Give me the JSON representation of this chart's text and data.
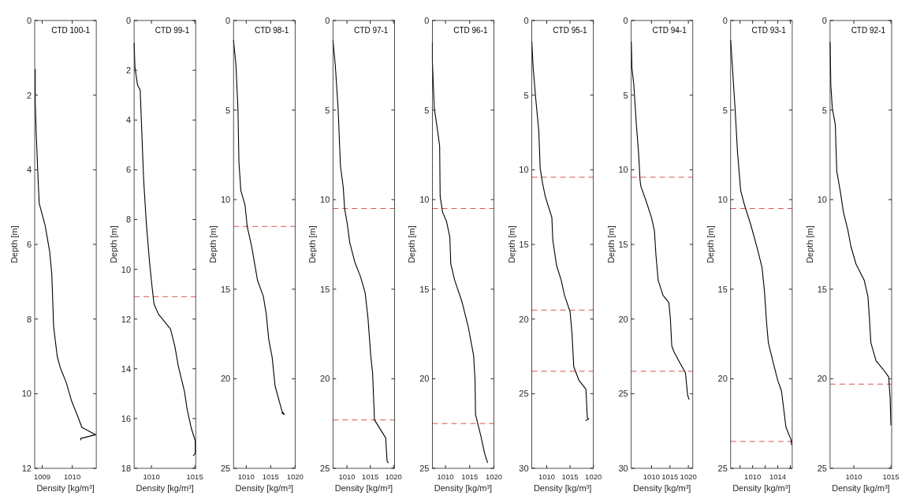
{
  "chart_data": [
    {
      "type": "line",
      "title": "CTD 100-1",
      "xlabel": "Density [kg/m³]",
      "ylabel": "Depth [m]",
      "xlim": [
        1008.75,
        1010.8
      ],
      "xticks": [
        1009,
        1010
      ],
      "ylim": [
        12,
        0
      ],
      "yticks": [
        0,
        2,
        4,
        6,
        8,
        10,
        12
      ],
      "line_style": "solid",
      "series": [
        {
          "color": "#000000",
          "x": [
            1008.77,
            1008.77,
            1008.8,
            1008.85,
            1008.9,
            1009.1,
            1009.25,
            1009.32,
            1009.38,
            1009.5,
            1009.6,
            1009.8,
            1009.98,
            1010.18,
            1010.32,
            1010.78,
            1010.28,
            1010.28
          ],
          "values": [
            1.3,
            2.2,
            3,
            4,
            4.9,
            5.5,
            6.2,
            6.8,
            8.2,
            9,
            9.3,
            9.7,
            10.2,
            10.6,
            10.9,
            11.1,
            11.2,
            11.25
          ]
        }
      ]
    },
    {
      "type": "line",
      "title": "CTD 99-1",
      "xlabel": "Density [kg/m³]",
      "ylabel": "Depth [m]",
      "xlim": [
        1008,
        1015.1
      ],
      "xticks": [
        1010,
        1015
      ],
      "ylim": [
        18,
        0
      ],
      "yticks": [
        0,
        2,
        4,
        6,
        8,
        10,
        12,
        14,
        16,
        18
      ],
      "line_style": "solid",
      "series": [
        {
          "color": "#000000",
          "x": [
            1008.0,
            1008.1,
            1008.4,
            1008.7,
            1009.1,
            1009.4,
            1009.8,
            1010.1,
            1010.3,
            1010.8,
            1012.2,
            1012.7,
            1013.1,
            1013.8,
            1014.1,
            1014.6,
            1015.05,
            1015.05,
            1014.8
          ],
          "values": [
            0.9,
            1.9,
            2.6,
            2.8,
            6.4,
            8.1,
            9.8,
            10.8,
            11.4,
            11.8,
            12.4,
            13.1,
            13.9,
            14.9,
            15.6,
            16.4,
            16.9,
            17.4,
            17.5
          ]
        }
      ],
      "ref_lines": [
        {
          "axis": "y",
          "value": 11.1,
          "color": "#d9534f",
          "line_style": "dashed"
        }
      ]
    },
    {
      "type": "line",
      "title": "CTD 98-1",
      "xlabel": "Density [kg/m³]",
      "ylabel": "Depth [m]",
      "xlim": [
        1007.4,
        1020
      ],
      "xticks": [
        1010,
        1015,
        1020
      ],
      "ylim": [
        25,
        0
      ],
      "yticks": [
        0,
        5,
        10,
        15,
        20,
        25
      ],
      "line_style": "solid",
      "series": [
        {
          "color": "#000000",
          "x": [
            1007.4,
            1007.9,
            1008.3,
            1008.5,
            1008.9,
            1009.75,
            1010.2,
            1011.1,
            1012.3,
            1013.5,
            1014.1,
            1014.6,
            1015.3,
            1015.9,
            1016.9,
            1017.3,
            1017.8,
            1017.2
          ],
          "values": [
            1.1,
            2.5,
            4.9,
            7.9,
            9.5,
            10.3,
            11.5,
            12.6,
            14.5,
            15.4,
            16.4,
            17.8,
            18.8,
            20.4,
            21.4,
            21.8,
            22.0,
            21.9
          ]
        }
      ],
      "ref_lines": [
        {
          "axis": "y",
          "value": 11.5,
          "color": "#d9534f",
          "line_style": "dashed"
        }
      ]
    },
    {
      "type": "line",
      "title": "CTD 97-1",
      "xlabel": "Density [kg/m³]",
      "ylabel": "Depth [m]",
      "xlim": [
        1007,
        1020.2
      ],
      "xticks": [
        1010,
        1015,
        1020
      ],
      "ylim": [
        25,
        0
      ],
      "yticks": [
        0,
        5,
        10,
        15,
        20,
        25
      ],
      "line_style": "solid",
      "series": [
        {
          "color": "#000000",
          "x": [
            1007.0,
            1007.5,
            1008.1,
            1008.6,
            1009.2,
            1009.5,
            1010.1,
            1010.6,
            1011.7,
            1012.9,
            1013.9,
            1014.5,
            1015.1,
            1015.5,
            1015.9,
            1018.3,
            1018.6,
            1018.9
          ],
          "values": [
            1.1,
            2.5,
            4.9,
            8.1,
            9.3,
            10.5,
            11.4,
            12.4,
            13.5,
            14.3,
            15.2,
            16.6,
            18.7,
            19.7,
            22.3,
            23.3,
            24.6,
            24.7
          ]
        }
      ],
      "ref_lines": [
        {
          "axis": "y",
          "value": 10.5,
          "color": "#d9534f",
          "line_style": "dashed"
        },
        {
          "axis": "y",
          "value": 22.3,
          "color": "#d9534f",
          "line_style": "dashed"
        }
      ]
    },
    {
      "type": "line",
      "title": "CTD 96-1",
      "xlabel": "Density [kg/m³]",
      "ylabel": "Depth [m]",
      "xlim": [
        1007.3,
        1020
      ],
      "xticks": [
        1010,
        1015,
        1020
      ],
      "ylim": [
        25,
        0
      ],
      "yticks": [
        0,
        5,
        10,
        15,
        20,
        25
      ],
      "line_style": "solid",
      "series": [
        {
          "color": "#000000",
          "x": [
            1007.3,
            1007.3,
            1007.7,
            1008.4,
            1008.8,
            1008.9,
            1009.4,
            1010.2,
            1010.9,
            1011.1,
            1011.9,
            1013.4,
            1014.7,
            1015.8,
            1016.1,
            1016.2,
            1017.3,
            1018.1,
            1018.7
          ],
          "values": [
            1.2,
            2.3,
            4.9,
            6.2,
            7.0,
            9.8,
            10.7,
            11.2,
            12.1,
            13.6,
            14.5,
            15.7,
            17.1,
            18.7,
            20.1,
            22.0,
            23.2,
            24.2,
            24.7
          ]
        }
      ],
      "ref_lines": [
        {
          "axis": "y",
          "value": 10.5,
          "color": "#d9534f",
          "line_style": "dashed"
        },
        {
          "axis": "y",
          "value": 22.5,
          "color": "#d9534f",
          "line_style": "dashed"
        }
      ]
    },
    {
      "type": "line",
      "title": "CTD 95-1",
      "xlabel": "Density [kg/m³]",
      "ylabel": "Depth [m]",
      "xlim": [
        1006.8,
        1020
      ],
      "xticks": [
        1010,
        1015,
        1020
      ],
      "ylim": [
        30,
        0
      ],
      "yticks": [
        0,
        5,
        10,
        15,
        20,
        25,
        30
      ],
      "line_style": "solid",
      "series": [
        {
          "color": "#000000",
          "x": [
            1006.8,
            1007.1,
            1007.6,
            1008.3,
            1008.6,
            1009.1,
            1009.7,
            1010.3,
            1011.1,
            1011.3,
            1012.1,
            1013.1,
            1013.8,
            1015.0,
            1015.4,
            1015.8,
            1016.9,
            1018.4,
            1018.7,
            1019.0,
            1018.3
          ],
          "values": [
            1.4,
            3.2,
            5.1,
            7.4,
            9.9,
            10.9,
            11.8,
            12.4,
            13.2,
            14.7,
            16.4,
            17.4,
            18.4,
            19.5,
            20.9,
            23.2,
            24.1,
            24.7,
            26.6,
            26.7,
            26.8
          ]
        }
      ],
      "ref_lines": [
        {
          "axis": "y",
          "value": 10.5,
          "color": "#d9534f",
          "line_style": "dashed"
        },
        {
          "axis": "y",
          "value": 19.4,
          "color": "#d9534f",
          "line_style": "dashed"
        },
        {
          "axis": "y",
          "value": 23.5,
          "color": "#d9534f",
          "line_style": "dashed"
        }
      ]
    },
    {
      "type": "line",
      "title": "CTD 94-1",
      "xlabel": "Density [kg/m³]",
      "ylabel": "Depth [m]",
      "xlim": [
        1004.5,
        1021.2
      ],
      "xticks": [
        1010,
        1015,
        1020
      ],
      "ylim": [
        30,
        0
      ],
      "yticks": [
        0,
        5,
        10,
        15,
        20,
        25,
        30
      ],
      "line_style": "solid",
      "series": [
        {
          "color": "#000000",
          "x": [
            1004.5,
            1004.7,
            1005.2,
            1005.9,
            1006.5,
            1006.9,
            1007.1,
            1008.4,
            1010.0,
            1010.8,
            1011.2,
            1011.8,
            1013.1,
            1014.7,
            1015.1,
            1015.5,
            1016.1,
            1017.4,
            1019.2,
            1019.8,
            1020.2
          ],
          "values": [
            1.4,
            3.2,
            4.3,
            7.0,
            8.9,
            10.7,
            11.1,
            12.0,
            13.2,
            14.1,
            15.7,
            17.4,
            18.4,
            18.9,
            19.9,
            21.8,
            22.2,
            22.8,
            23.6,
            25.1,
            25.4
          ]
        }
      ],
      "ref_lines": [
        {
          "axis": "y",
          "value": 10.5,
          "color": "#d9534f",
          "line_style": "dashed"
        },
        {
          "axis": "y",
          "value": 23.5,
          "color": "#d9534f",
          "line_style": "dashed"
        }
      ]
    },
    {
      "type": "line",
      "title": "CTD 93-1",
      "xlabel": "Density [kg/m³]",
      "ylabel": "Depth [m]",
      "xlim": [
        1006.5,
        1016.3
      ],
      "xticks": [
        {
          "value": 1008,
          "label": null
        },
        1010,
        {
          "value": 1012,
          "label": null
        },
        1014,
        {
          "value": 1016,
          "label": null
        }
      ],
      "ylim": [
        25,
        0
      ],
      "yticks": [
        0,
        5,
        10,
        15,
        20,
        25
      ],
      "line_style": "solid",
      "series": [
        {
          "color": "#000000",
          "x": [
            1006.5,
            1006.8,
            1007.2,
            1007.6,
            1008.1,
            1008.7,
            1009.7,
            1010.8,
            1011.5,
            1011.9,
            1012.2,
            1012.5,
            1013.2,
            1014.0,
            1014.6,
            1015.3,
            1016.1,
            1016.2
          ],
          "values": [
            1.1,
            2.7,
            4.9,
            7.4,
            9.5,
            10.3,
            11.4,
            12.8,
            13.8,
            15.2,
            16.8,
            18.0,
            19.0,
            20.1,
            20.7,
            22.7,
            23.4,
            23.7
          ]
        }
      ],
      "ref_lines": [
        {
          "axis": "y",
          "value": 10.5,
          "color": "#d9534f",
          "line_style": "dashed"
        },
        {
          "axis": "y",
          "value": 23.5,
          "color": "#d9534f",
          "line_style": "dashed"
        }
      ]
    },
    {
      "type": "line",
      "title": "CTD 92-1",
      "xlabel": "Density [kg/m³]",
      "ylabel": "Depth [m]",
      "xlim": [
        1006.8,
        1015.1
      ],
      "xticks": [
        1010,
        1015
      ],
      "ylim": [
        25,
        0
      ],
      "yticks": [
        0,
        5,
        10,
        15,
        20,
        25
      ],
      "line_style": "solid",
      "series": [
        {
          "color": "#000000",
          "x": [
            1006.8,
            1006.9,
            1007.1,
            1007.5,
            1007.7,
            1008.2,
            1008.6,
            1009.2,
            1009.6,
            1010.3,
            1011.4,
            1011.9,
            1012.1,
            1012.3,
            1013.0,
            1014.0,
            1014.7,
            1014.9,
            1015.0
          ],
          "values": [
            1.2,
            3.6,
            4.9,
            5.8,
            8.4,
            9.6,
            10.7,
            11.7,
            12.6,
            13.6,
            14.5,
            15.4,
            16.6,
            18.0,
            19.0,
            19.5,
            19.9,
            21.1,
            22.6
          ]
        }
      ],
      "ref_lines": [
        {
          "axis": "y",
          "value": 20.3,
          "color": "#d9534f",
          "line_style": "dashed"
        }
      ]
    }
  ]
}
